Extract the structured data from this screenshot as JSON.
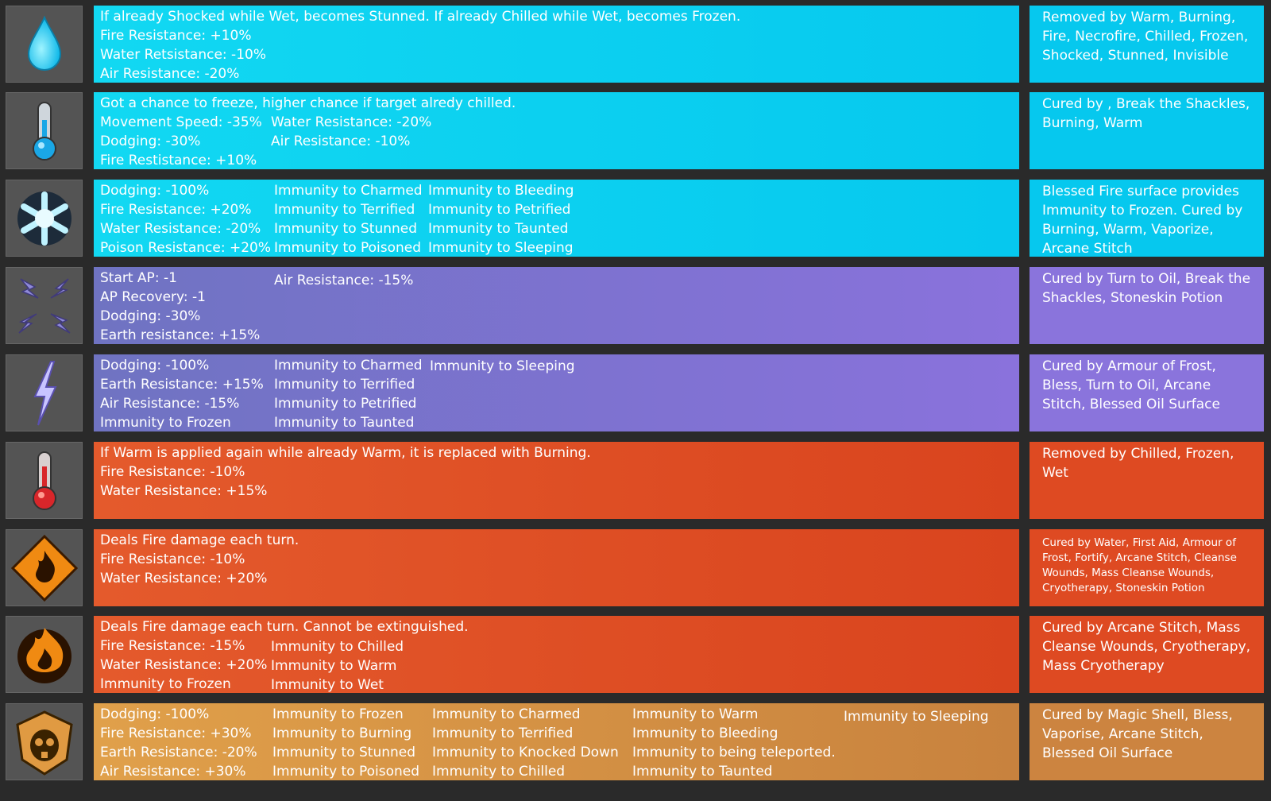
{
  "rows": [
    {
      "icon": "water-drop-icon",
      "theme": "cyan",
      "full": "If already Shocked while Wet, becomes Stunned. If already Chilled while Wet, becomes Frozen.",
      "columns": [
        [
          "",
          "Fire Resistance: +10%",
          "Water Retsistance: -10%",
          "Air Resistance: -20%"
        ]
      ],
      "side": "Removed by Warm, Burning, Fire, Necrofire, Chilled, Frozen, Shocked, Stunned, Invisible"
    },
    {
      "icon": "thermometer-cold-icon",
      "theme": "cyan",
      "full": "Got a chance to freeze, higher chance if target alredy chilled.",
      "columns": [
        [
          "",
          "Movement Speed: -35%",
          "Dodging: -30%",
          "Fire Restistance: +10%"
        ],
        [
          "",
          "Water Resistance: -20%",
          "Air Resistance: -10%"
        ]
      ],
      "side": "Cured by , Break the Shackles, Burning, Warm"
    },
    {
      "icon": "snowflake-icon",
      "theme": "cyan",
      "full": "",
      "columns": [
        [
          "Dodging: -100%",
          "Fire Resistance: +20%",
          "Water Resistance: -20%",
          "Poison Resistance: +20%"
        ],
        [
          "Immunity to Charmed",
          "Immunity to Terrified",
          "Immunity to Stunned",
          "Immunity to Poisoned"
        ],
        [
          "Immunity to Bleeding",
          "Immunity to Petrified",
          "Immunity to Taunted",
          "Immunity to Sleeping"
        ]
      ],
      "side": "Blessed Fire surface provides Immunity to Frozen. Cured by Burning, Warm, Vaporize, Arcane Stitch"
    },
    {
      "icon": "lightning-quad-icon",
      "theme": "purple",
      "full": "",
      "columns": [
        [
          "Start AP: -1",
          "AP Recovery: -1",
          "Dodging: -30%",
          "Earth resistance: +15%"
        ],
        [
          "Air Resistance: -15%"
        ]
      ],
      "side": "Cured by Turn to Oil, Break the Shackles,  Stoneskin Potion"
    },
    {
      "icon": "lightning-bolt-icon",
      "theme": "purple",
      "full": "",
      "columns": [
        [
          "Dodging: -100%",
          "Earth Resistance: +15%",
          "Air Resistance: -15%",
          "Immunity to Frozen"
        ],
        [
          "Immunity to Charmed",
          "Immunity to Terrified",
          "Immunity to Petrified",
          "Immunity to Taunted"
        ],
        [
          "Immunity to Sleeping"
        ]
      ],
      "side": "Cured by Armour of Frost, Bless, Turn to Oil, Arcane Stitch, Blessed Oil Surface"
    },
    {
      "icon": "thermometer-warm-icon",
      "theme": "orange",
      "full": "If Warm is applied again while already Warm, it is replaced with Burning.",
      "columns": [
        [
          "",
          "Fire Resistance: -10%",
          "Water Resistance: +15%"
        ]
      ],
      "side": "Removed by Chilled, Frozen, Wet"
    },
    {
      "icon": "burning-icon",
      "theme": "orange",
      "full": "Deals Fire damage each turn.",
      "columns": [
        [
          "",
          "Fire Resistance: -10%",
          "Water Resistance: +20%"
        ]
      ],
      "side": "Cured by Water, First Aid, Armour of Frost, Fortify, Arcane Stitch, Cleanse Wounds, Mass Cleanse Wounds, Cryotherapy, Stoneskin Potion",
      "side_small": true
    },
    {
      "icon": "necrofire-icon",
      "theme": "orange",
      "full": "Deals Fire damage each turn. Cannot be extinguished.",
      "columns": [
        [
          "",
          "Fire Resistance: -15%",
          "Water Resistance: +20%",
          "Immunity to Frozen"
        ],
        [
          "",
          "Immunity to Chilled",
          "Immunity to Warm",
          "Immunity to Wet"
        ]
      ],
      "side": "Cured by Arcane Stitch, Mass Cleanse  Wounds,  Cryotherapy, Mass Cryotherapy"
    },
    {
      "icon": "skull-shield-icon",
      "theme": "gold",
      "full": "",
      "columns": [
        [
          "Dodging: -100%",
          "Fire Resistance: +30%",
          "Earth Resistance: -20%",
          "Air Resistance: +30%"
        ],
        [
          "Immunity to Frozen",
          "Immunity to Burning",
          "Immunity to Stunned",
          "Immunity to Poisoned"
        ],
        [
          "Immunity to Charmed",
          "Immunity to Terrified",
          "Immunity to Knocked Down",
          "Immunity to Chilled"
        ],
        [
          "Immunity to Warm",
          "Immunity to Bleeding",
          "Immunity to being teleported.",
          "Immunity to Taunted"
        ],
        [
          "Immunity to Sleeping"
        ]
      ],
      "side": "Cured by Magic Shell, Bless, Vaporise, Arcane Stitch, Blessed Oil Surface"
    }
  ]
}
